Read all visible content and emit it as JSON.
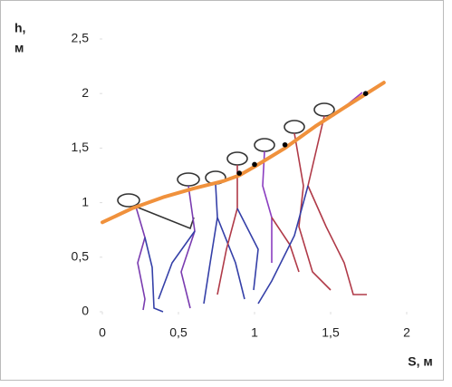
{
  "chart_data": {
    "type": "line",
    "y_label_lines": [
      "h,",
      "м"
    ],
    "x_label": "S, м",
    "xlim": [
      0,
      2
    ],
    "ylim": [
      0,
      2.5
    ],
    "xticks": [
      0,
      {
        "value": 0.5,
        "label": "0,5"
      },
      1,
      {
        "value": 1.5,
        "label": "1,5"
      },
      2
    ],
    "yticks": [
      0,
      {
        "value": 0.5,
        "label": "0,5"
      },
      1,
      {
        "value": 1.5,
        "label": "1,5"
      },
      2,
      {
        "value": 2.5,
        "label": "2,5"
      }
    ],
    "series": [
      {
        "color": "#f0913c",
        "x": [
          0,
          0.2,
          0.4,
          0.6,
          0.8,
          0.9,
          1.0,
          1.2,
          1.4,
          1.6,
          1.85
        ],
        "values": [
          0.82,
          0.95,
          1.05,
          1.13,
          1.2,
          1.25,
          1.33,
          1.5,
          1.7,
          1.88,
          2.1
        ]
      },
      {
        "color": "#000000",
        "markers_only": true,
        "x": [
          0.9,
          1.0,
          1.2,
          1.73
        ],
        "values": [
          1.27,
          1.35,
          1.53,
          2.0
        ]
      }
    ]
  }
}
